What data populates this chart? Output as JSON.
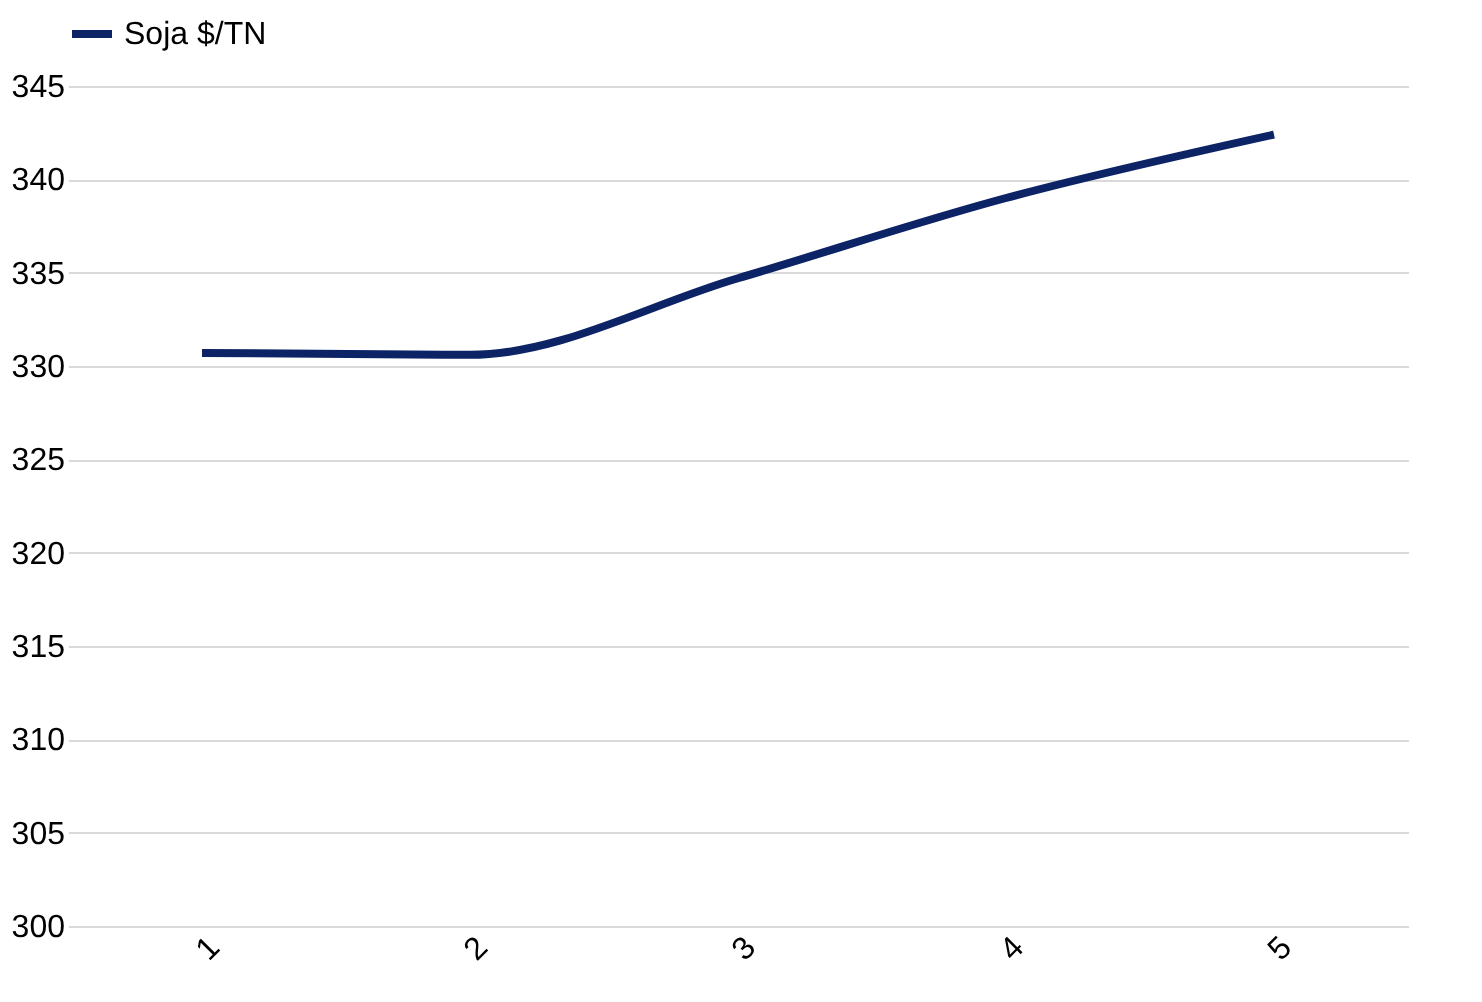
{
  "chart_data": {
    "type": "line",
    "categories": [
      "1",
      "2",
      "3",
      "4",
      "5"
    ],
    "series": [
      {
        "name": "Soja $/TN",
        "color": "#0c2366",
        "values": [
          330.7,
          330.6,
          334.7,
          339.0,
          342.4
        ]
      }
    ],
    "ylim": [
      300,
      345
    ],
    "yticks": [
      300,
      305,
      310,
      315,
      320,
      325,
      330,
      335,
      340,
      345
    ],
    "grid": "y",
    "legend": "top",
    "marker": "none",
    "line_style": "solid"
  }
}
